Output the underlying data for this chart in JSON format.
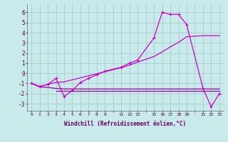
{
  "bg_color": "#c8eaea",
  "grid_color": "#aacccc",
  "line_color_dark": "#990099",
  "line_color_bright": "#cc00cc",
  "xlabel": "Windchill (Refroidissement éolien,°C)",
  "ylim": [
    -3.7,
    6.8
  ],
  "xlim": [
    -0.5,
    23.5
  ],
  "yticks": [
    -3,
    -2,
    -1,
    0,
    1,
    2,
    3,
    4,
    5,
    6
  ],
  "xtick_labels": [
    "0",
    "1",
    "2",
    "3",
    "4",
    "5",
    "6",
    "7",
    "8",
    "9",
    "",
    "11",
    "12",
    "13",
    "",
    "15",
    "16",
    "17",
    "18",
    "19",
    "",
    "21",
    "22",
    "23"
  ],
  "xtick_positions": [
    0,
    1,
    2,
    3,
    4,
    5,
    6,
    7,
    8,
    9,
    10,
    11,
    12,
    13,
    14,
    15,
    16,
    17,
    18,
    19,
    20,
    21,
    22,
    23
  ],
  "line_smooth_x": [
    0,
    1,
    2,
    3,
    4,
    5,
    6,
    7,
    8,
    9,
    11,
    12,
    13,
    15,
    16,
    17,
    18,
    19,
    21,
    22,
    23
  ],
  "line_smooth_y": [
    -1.0,
    -1.3,
    -1.1,
    -0.9,
    -0.85,
    -0.65,
    -0.45,
    -0.25,
    -0.05,
    0.15,
    0.55,
    0.8,
    1.1,
    1.65,
    2.1,
    2.6,
    3.05,
    3.6,
    3.7,
    3.7,
    3.7
  ],
  "line_peak_x": [
    0,
    1,
    2,
    3,
    4,
    5,
    6,
    7,
    8,
    9,
    11,
    12,
    13,
    15,
    16,
    17,
    18,
    19,
    21,
    22,
    23
  ],
  "line_peak_y": [
    -1.0,
    -1.3,
    -1.1,
    -0.5,
    -2.3,
    -1.7,
    -0.9,
    -0.5,
    -0.15,
    0.2,
    0.6,
    1.0,
    1.3,
    3.5,
    6.0,
    5.8,
    5.8,
    4.8,
    -1.5,
    -3.3,
    -2.0
  ],
  "line_flat1_x": [
    0,
    1,
    2,
    3,
    4,
    5,
    6,
    7,
    8,
    9,
    11,
    12,
    13,
    15,
    16,
    17,
    18,
    19,
    21,
    22,
    23
  ],
  "line_flat1_y": [
    -1.0,
    -1.35,
    -1.4,
    -1.5,
    -1.55,
    -1.55,
    -1.55,
    -1.55,
    -1.55,
    -1.55,
    -1.55,
    -1.55,
    -1.55,
    -1.55,
    -1.55,
    -1.55,
    -1.55,
    -1.55,
    -1.55,
    -1.55,
    -1.55
  ],
  "line_flat2_x": [
    3,
    4,
    5,
    6,
    7,
    8,
    9,
    11,
    12,
    13,
    15,
    16,
    17,
    18,
    19,
    21,
    22,
    23
  ],
  "line_flat2_y": [
    -1.75,
    -1.75,
    -1.75,
    -1.75,
    -1.75,
    -1.75,
    -1.75,
    -1.75,
    -1.75,
    -1.75,
    -1.75,
    -1.75,
    -1.75,
    -1.75,
    -1.75,
    -1.75,
    -1.75,
    -1.75
  ]
}
